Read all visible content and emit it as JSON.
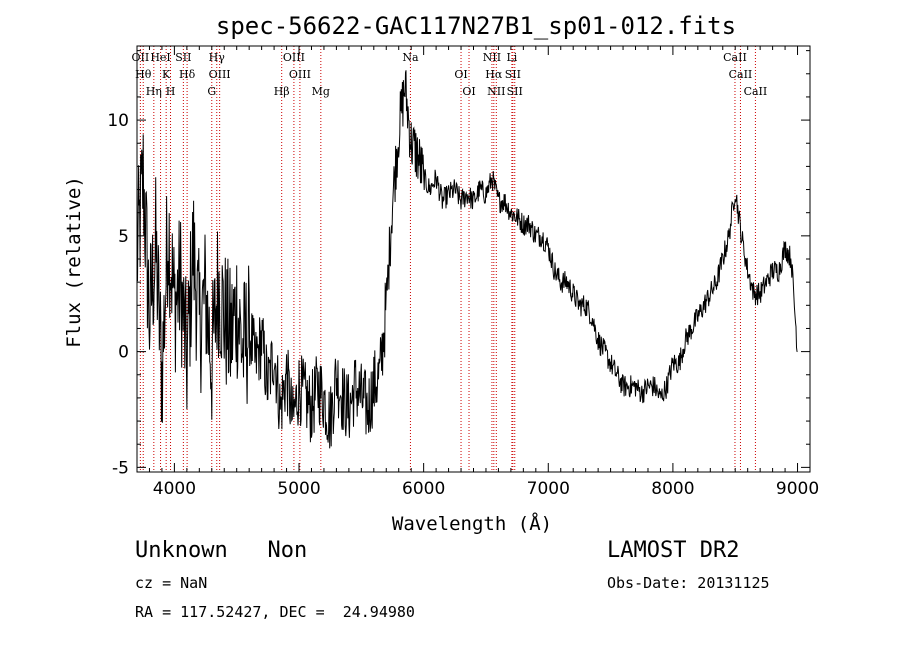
{
  "chart_data": {
    "type": "line",
    "title": "spec-56622-GAC117N27B1_sp01-012.fits",
    "xlabel": "Wavelength (Å)",
    "ylabel": "Flux (relative)",
    "xlim": [
      3700,
      9100
    ],
    "ylim": [
      -5.2,
      13.2
    ],
    "x_ticks": [
      4000,
      5000,
      6000,
      7000,
      8000,
      9000
    ],
    "y_ticks": [
      -5,
      0,
      5,
      10
    ],
    "grid": false,
    "colors": {
      "spectrum": "#000000",
      "lines": "#cc0000"
    },
    "series": [
      {
        "x": [
          3700,
          3750,
          3800,
          3850,
          3900,
          3950,
          4000,
          4050,
          4100,
          4150,
          4200,
          4250,
          4300,
          4350,
          4400,
          4450,
          4500,
          4550,
          4600,
          4650,
          4700,
          4750,
          4800,
          4850,
          4900,
          4950,
          5000,
          5050,
          5100,
          5150,
          5200,
          5250,
          5300,
          5350,
          5400,
          5450,
          5500,
          5550,
          5600,
          5650,
          5700,
          5750,
          5800,
          5850,
          5900,
          5950,
          6000,
          6050,
          6100,
          6150,
          6200,
          6250,
          6300,
          6350,
          6400,
          6450,
          6500,
          6550,
          6600,
          6650,
          6700,
          6750,
          6800,
          6850,
          6900,
          6950,
          7000,
          7050,
          7100,
          7150,
          7200,
          7250,
          7300,
          7350,
          7400,
          7450,
          7500,
          7550,
          7600,
          7650,
          7700,
          7750,
          7800,
          7850,
          7900,
          7950,
          8000,
          8050,
          8100,
          8150,
          8200,
          8250,
          8300,
          8350,
          8400,
          8450,
          8500,
          8550,
          8600,
          8650,
          8700,
          8750,
          8800,
          8850,
          8900,
          8950,
          9000
        ],
        "y": [
          4.0,
          7.5,
          1.5,
          4.5,
          -1.0,
          5.5,
          2.0,
          3.0,
          -0.5,
          4.5,
          1.0,
          2.5,
          -0.5,
          3.0,
          1.5,
          0.5,
          2.0,
          0.0,
          1.0,
          -0.5,
          0.5,
          -1.5,
          0.0,
          -2.5,
          -1.0,
          -3.0,
          -1.5,
          -2.0,
          -2.5,
          -1.5,
          -2.0,
          -3.0,
          -1.0,
          -2.0,
          -2.5,
          -1.5,
          -2.0,
          -2.5,
          -1.5,
          -1.0,
          2.0,
          6.5,
          9.5,
          11.5,
          9.0,
          8.5,
          7.5,
          7.0,
          7.5,
          6.5,
          6.8,
          7.0,
          6.5,
          6.8,
          6.5,
          7.0,
          6.8,
          7.5,
          6.5,
          6.5,
          6.0,
          5.8,
          5.5,
          5.5,
          5.0,
          5.0,
          4.5,
          3.5,
          3.0,
          3.0,
          2.5,
          2.0,
          2.0,
          1.5,
          0.5,
          0.0,
          -0.5,
          -1.0,
          -1.5,
          -1.5,
          -1.5,
          -1.8,
          -1.5,
          -1.5,
          -2.0,
          -1.5,
          -0.5,
          -0.5,
          0.5,
          1.0,
          1.5,
          2.0,
          2.5,
          3.0,
          4.0,
          5.0,
          7.0,
          5.0,
          3.5,
          2.5,
          2.5,
          3.0,
          3.5,
          3.5,
          4.5,
          4.0,
          0.0
        ]
      }
    ],
    "line_markers": [
      {
        "label": "OII",
        "x": 3727
      },
      {
        "label": "Hθ",
        "x": 3750
      },
      {
        "label": "Hη",
        "x": 3835
      },
      {
        "label": "HeI",
        "x": 3889
      },
      {
        "label": "K",
        "x": 3934
      },
      {
        "label": "H",
        "x": 3969
      },
      {
        "label": "SII",
        "x": 4072
      },
      {
        "label": "Hδ",
        "x": 4102
      },
      {
        "label": "G",
        "x": 4300
      },
      {
        "label": "Hγ",
        "x": 4340
      },
      {
        "label": "OIII",
        "x": 4363
      },
      {
        "label": "Hβ",
        "x": 4861
      },
      {
        "label": "OIII",
        "x": 4959
      },
      {
        "label": "OIII",
        "x": 5007
      },
      {
        "label": "Mg",
        "x": 5175
      },
      {
        "label": "Na",
        "x": 5894
      },
      {
        "label": "OI",
        "x": 6300
      },
      {
        "label": "OI",
        "x": 6364
      },
      {
        "label": "NII",
        "x": 6548
      },
      {
        "label": "Hα",
        "x": 6563
      },
      {
        "label": "NII",
        "x": 6583
      },
      {
        "label": "Li",
        "x": 6708
      },
      {
        "label": "SII",
        "x": 6716
      },
      {
        "label": "SII",
        "x": 6731
      },
      {
        "label": "CaII",
        "x": 8498
      },
      {
        "label": "CaII",
        "x": 8542
      },
      {
        "label": "CaII",
        "x": 8662
      }
    ]
  },
  "info": {
    "class_label": "Unknown   Non",
    "survey": "LAMOST DR2",
    "cz": "cz = NaN",
    "obs_date": "Obs-Date: 20131125",
    "coords": "RA = 117.52427, DEC =  24.94980"
  }
}
